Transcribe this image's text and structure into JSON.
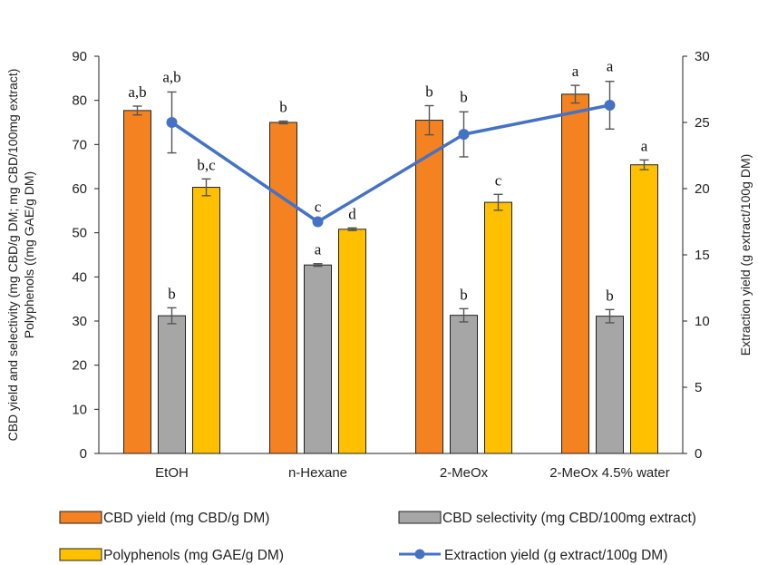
{
  "chart_data": {
    "type": "bar",
    "categories": [
      "EtOH",
      "n-Hexane",
      "2-MeOx",
      "2-MeOx 4.5% water"
    ],
    "series": [
      {
        "name": "CBD yield (mg CBD/g DM)",
        "axis": "left",
        "kind": "bar",
        "color": "#F58220",
        "values": [
          77.7,
          75.0,
          75.5,
          81.4
        ],
        "errors": [
          1.0,
          0.3,
          3.3,
          2.0
        ],
        "labels": [
          "a,b",
          "b",
          "b",
          "a"
        ]
      },
      {
        "name": "CBD selectivity (mg CBD/100mg extract)",
        "axis": "left",
        "kind": "bar",
        "color": "#A6A6A6",
        "values": [
          31.2,
          42.7,
          31.3,
          31.1
        ],
        "errors": [
          1.8,
          0.3,
          1.5,
          1.5
        ],
        "labels": [
          "b",
          "a",
          "b",
          "b"
        ]
      },
      {
        "name": "Polyphenols (mg GAE/g DM)",
        "axis": "left",
        "kind": "bar",
        "color": "#FFC000",
        "values": [
          60.3,
          50.8,
          56.9,
          65.4
        ],
        "errors": [
          1.9,
          0.3,
          1.8,
          1.1
        ],
        "labels": [
          "b,c",
          "d",
          "c",
          "a"
        ]
      },
      {
        "name": "Extraction yield (g extract/100g DM)",
        "axis": "right",
        "kind": "line",
        "color": "#4472C4",
        "values": [
          25.0,
          17.5,
          24.1,
          26.3
        ],
        "errors": [
          2.3,
          0,
          1.7,
          1.8
        ],
        "labels": [
          "a,b",
          "c",
          "b",
          "a"
        ]
      }
    ],
    "ylabel": "CBD yield and selectivity (mg CBD/g DM; mg CBD/100mg extract)\nPolyphenols ((mg GAE/g DM)",
    "ylabel_lines": [
      "CBD yield and selectivity (mg CBD/g DM; mg CBD/100mg extract)",
      "Polyphenols ((mg GAE/g DM)"
    ],
    "y2label": "Extraction yield (g extract/100g DM)",
    "ylim": [
      0,
      90
    ],
    "yticks": [
      "0",
      "10",
      "20",
      "30",
      "40",
      "50",
      "60",
      "70",
      "80",
      "90"
    ],
    "y2lim": [
      0,
      30
    ],
    "y2ticks": [
      "0",
      "5",
      "10",
      "15",
      "20",
      "25",
      "30"
    ],
    "grid": false,
    "legend_position": "bottom"
  }
}
